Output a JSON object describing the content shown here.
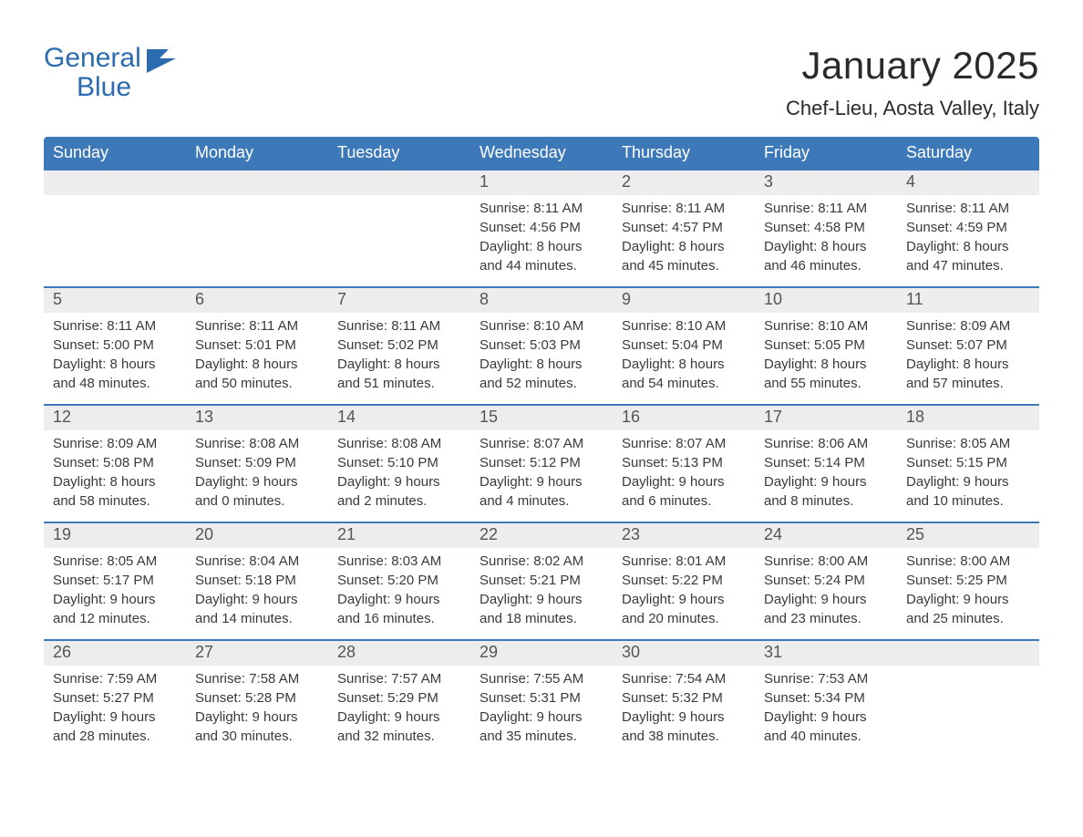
{
  "logo": {
    "general": "General",
    "blue": "Blue"
  },
  "title": "January 2025",
  "location": "Chef-Lieu, Aosta Valley, Italy",
  "colors": {
    "header_bar": "#3d79b8",
    "week_rule": "#3d79b8",
    "daynum_bg": "#ededed",
    "daynum_fg": "#555555",
    "text": "#3a3a3a",
    "logo": "#2b6bb0"
  },
  "day_names": [
    "Sunday",
    "Monday",
    "Tuesday",
    "Wednesday",
    "Thursday",
    "Friday",
    "Saturday"
  ],
  "weeks": [
    [
      {
        "n": "",
        "sunrise": "",
        "sunset": "",
        "day1": "",
        "day2": ""
      },
      {
        "n": "",
        "sunrise": "",
        "sunset": "",
        "day1": "",
        "day2": ""
      },
      {
        "n": "",
        "sunrise": "",
        "sunset": "",
        "day1": "",
        "day2": ""
      },
      {
        "n": "1",
        "sunrise": "Sunrise: 8:11 AM",
        "sunset": "Sunset: 4:56 PM",
        "day1": "Daylight: 8 hours",
        "day2": "and 44 minutes."
      },
      {
        "n": "2",
        "sunrise": "Sunrise: 8:11 AM",
        "sunset": "Sunset: 4:57 PM",
        "day1": "Daylight: 8 hours",
        "day2": "and 45 minutes."
      },
      {
        "n": "3",
        "sunrise": "Sunrise: 8:11 AM",
        "sunset": "Sunset: 4:58 PM",
        "day1": "Daylight: 8 hours",
        "day2": "and 46 minutes."
      },
      {
        "n": "4",
        "sunrise": "Sunrise: 8:11 AM",
        "sunset": "Sunset: 4:59 PM",
        "day1": "Daylight: 8 hours",
        "day2": "and 47 minutes."
      }
    ],
    [
      {
        "n": "5",
        "sunrise": "Sunrise: 8:11 AM",
        "sunset": "Sunset: 5:00 PM",
        "day1": "Daylight: 8 hours",
        "day2": "and 48 minutes."
      },
      {
        "n": "6",
        "sunrise": "Sunrise: 8:11 AM",
        "sunset": "Sunset: 5:01 PM",
        "day1": "Daylight: 8 hours",
        "day2": "and 50 minutes."
      },
      {
        "n": "7",
        "sunrise": "Sunrise: 8:11 AM",
        "sunset": "Sunset: 5:02 PM",
        "day1": "Daylight: 8 hours",
        "day2": "and 51 minutes."
      },
      {
        "n": "8",
        "sunrise": "Sunrise: 8:10 AM",
        "sunset": "Sunset: 5:03 PM",
        "day1": "Daylight: 8 hours",
        "day2": "and 52 minutes."
      },
      {
        "n": "9",
        "sunrise": "Sunrise: 8:10 AM",
        "sunset": "Sunset: 5:04 PM",
        "day1": "Daylight: 8 hours",
        "day2": "and 54 minutes."
      },
      {
        "n": "10",
        "sunrise": "Sunrise: 8:10 AM",
        "sunset": "Sunset: 5:05 PM",
        "day1": "Daylight: 8 hours",
        "day2": "and 55 minutes."
      },
      {
        "n": "11",
        "sunrise": "Sunrise: 8:09 AM",
        "sunset": "Sunset: 5:07 PM",
        "day1": "Daylight: 8 hours",
        "day2": "and 57 minutes."
      }
    ],
    [
      {
        "n": "12",
        "sunrise": "Sunrise: 8:09 AM",
        "sunset": "Sunset: 5:08 PM",
        "day1": "Daylight: 8 hours",
        "day2": "and 58 minutes."
      },
      {
        "n": "13",
        "sunrise": "Sunrise: 8:08 AM",
        "sunset": "Sunset: 5:09 PM",
        "day1": "Daylight: 9 hours",
        "day2": "and 0 minutes."
      },
      {
        "n": "14",
        "sunrise": "Sunrise: 8:08 AM",
        "sunset": "Sunset: 5:10 PM",
        "day1": "Daylight: 9 hours",
        "day2": "and 2 minutes."
      },
      {
        "n": "15",
        "sunrise": "Sunrise: 8:07 AM",
        "sunset": "Sunset: 5:12 PM",
        "day1": "Daylight: 9 hours",
        "day2": "and 4 minutes."
      },
      {
        "n": "16",
        "sunrise": "Sunrise: 8:07 AM",
        "sunset": "Sunset: 5:13 PM",
        "day1": "Daylight: 9 hours",
        "day2": "and 6 minutes."
      },
      {
        "n": "17",
        "sunrise": "Sunrise: 8:06 AM",
        "sunset": "Sunset: 5:14 PM",
        "day1": "Daylight: 9 hours",
        "day2": "and 8 minutes."
      },
      {
        "n": "18",
        "sunrise": "Sunrise: 8:05 AM",
        "sunset": "Sunset: 5:15 PM",
        "day1": "Daylight: 9 hours",
        "day2": "and 10 minutes."
      }
    ],
    [
      {
        "n": "19",
        "sunrise": "Sunrise: 8:05 AM",
        "sunset": "Sunset: 5:17 PM",
        "day1": "Daylight: 9 hours",
        "day2": "and 12 minutes."
      },
      {
        "n": "20",
        "sunrise": "Sunrise: 8:04 AM",
        "sunset": "Sunset: 5:18 PM",
        "day1": "Daylight: 9 hours",
        "day2": "and 14 minutes."
      },
      {
        "n": "21",
        "sunrise": "Sunrise: 8:03 AM",
        "sunset": "Sunset: 5:20 PM",
        "day1": "Daylight: 9 hours",
        "day2": "and 16 minutes."
      },
      {
        "n": "22",
        "sunrise": "Sunrise: 8:02 AM",
        "sunset": "Sunset: 5:21 PM",
        "day1": "Daylight: 9 hours",
        "day2": "and 18 minutes."
      },
      {
        "n": "23",
        "sunrise": "Sunrise: 8:01 AM",
        "sunset": "Sunset: 5:22 PM",
        "day1": "Daylight: 9 hours",
        "day2": "and 20 minutes."
      },
      {
        "n": "24",
        "sunrise": "Sunrise: 8:00 AM",
        "sunset": "Sunset: 5:24 PM",
        "day1": "Daylight: 9 hours",
        "day2": "and 23 minutes."
      },
      {
        "n": "25",
        "sunrise": "Sunrise: 8:00 AM",
        "sunset": "Sunset: 5:25 PM",
        "day1": "Daylight: 9 hours",
        "day2": "and 25 minutes."
      }
    ],
    [
      {
        "n": "26",
        "sunrise": "Sunrise: 7:59 AM",
        "sunset": "Sunset: 5:27 PM",
        "day1": "Daylight: 9 hours",
        "day2": "and 28 minutes."
      },
      {
        "n": "27",
        "sunrise": "Sunrise: 7:58 AM",
        "sunset": "Sunset: 5:28 PM",
        "day1": "Daylight: 9 hours",
        "day2": "and 30 minutes."
      },
      {
        "n": "28",
        "sunrise": "Sunrise: 7:57 AM",
        "sunset": "Sunset: 5:29 PM",
        "day1": "Daylight: 9 hours",
        "day2": "and 32 minutes."
      },
      {
        "n": "29",
        "sunrise": "Sunrise: 7:55 AM",
        "sunset": "Sunset: 5:31 PM",
        "day1": "Daylight: 9 hours",
        "day2": "and 35 minutes."
      },
      {
        "n": "30",
        "sunrise": "Sunrise: 7:54 AM",
        "sunset": "Sunset: 5:32 PM",
        "day1": "Daylight: 9 hours",
        "day2": "and 38 minutes."
      },
      {
        "n": "31",
        "sunrise": "Sunrise: 7:53 AM",
        "sunset": "Sunset: 5:34 PM",
        "day1": "Daylight: 9 hours",
        "day2": "and 40 minutes."
      },
      {
        "n": "",
        "sunrise": "",
        "sunset": "",
        "day1": "",
        "day2": ""
      }
    ]
  ]
}
